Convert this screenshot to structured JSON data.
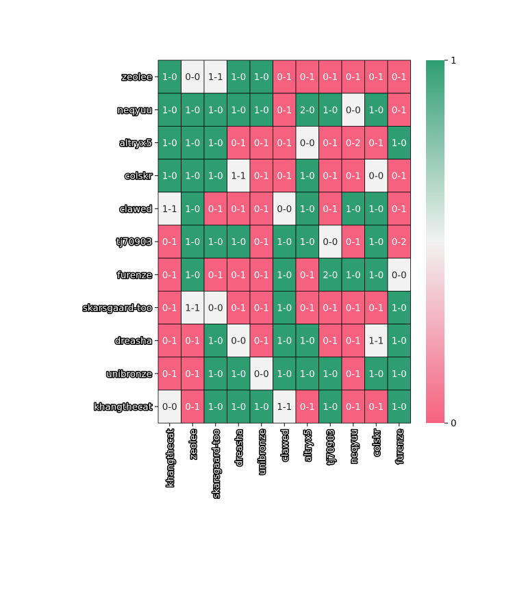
{
  "chart_data": {
    "type": "heatmap",
    "title": "",
    "xlabel": "",
    "ylabel": "",
    "rows": [
      "zeolee",
      "neqyuu",
      "altryx5",
      "colskr",
      "clawed",
      "tj70903",
      "furenze",
      "skarsgaard-too",
      "dreasha",
      "unibronze",
      "khangthecat"
    ],
    "columns": [
      "khangthecat",
      "zeolee",
      "skarsgaard-too",
      "dreasha",
      "unibronze",
      "clawed",
      "altryx5",
      "tj70903",
      "neqyuu",
      "colskr",
      "furenze"
    ],
    "cell_labels": [
      [
        "1-0",
        "0-0",
        "1-1",
        "1-0",
        "1-0",
        "0-1",
        "0-1",
        "0-1",
        "0-1",
        "0-1",
        "0-1"
      ],
      [
        "1-0",
        "1-0",
        "1-0",
        "1-0",
        "1-0",
        "0-1",
        "2-0",
        "1-0",
        "0-0",
        "1-0",
        "0-1"
      ],
      [
        "1-0",
        "1-0",
        "1-0",
        "0-1",
        "0-1",
        "0-1",
        "0-0",
        "0-1",
        "0-2",
        "0-1",
        "1-0"
      ],
      [
        "1-0",
        "1-0",
        "1-0",
        "1-1",
        "0-1",
        "0-1",
        "1-0",
        "0-1",
        "0-1",
        "0-0",
        "0-1"
      ],
      [
        "1-1",
        "1-0",
        "0-1",
        "0-1",
        "0-1",
        "0-0",
        "1-0",
        "0-1",
        "1-0",
        "1-0",
        "0-1"
      ],
      [
        "0-1",
        "1-0",
        "1-0",
        "1-0",
        "0-1",
        "1-0",
        "1-0",
        "0-0",
        "0-1",
        "1-0",
        "0-2"
      ],
      [
        "0-1",
        "1-0",
        "0-1",
        "0-1",
        "0-1",
        "1-0",
        "0-1",
        "2-0",
        "1-0",
        "1-0",
        "0-0"
      ],
      [
        "0-1",
        "1-1",
        "0-0",
        "0-1",
        "0-1",
        "1-0",
        "0-1",
        "0-1",
        "0-1",
        "0-1",
        "1-0"
      ],
      [
        "0-1",
        "0-1",
        "1-0",
        "0-0",
        "0-1",
        "1-0",
        "1-0",
        "0-1",
        "0-1",
        "1-1",
        "1-0"
      ],
      [
        "0-1",
        "0-1",
        "1-0",
        "1-0",
        "0-0",
        "1-0",
        "1-0",
        "1-0",
        "0-1",
        "1-0",
        "1-0"
      ],
      [
        "0-0",
        "0-1",
        "1-0",
        "1-0",
        "1-0",
        "1-1",
        "0-1",
        "1-0",
        "0-1",
        "0-1",
        "1-0"
      ]
    ],
    "values": [
      [
        1,
        0.5,
        0.5,
        1,
        1,
        0,
        0,
        0,
        0,
        0,
        0
      ],
      [
        1,
        1,
        1,
        1,
        1,
        0,
        1,
        1,
        0.5,
        1,
        0
      ],
      [
        1,
        1,
        1,
        0,
        0,
        0,
        0.5,
        0,
        0,
        0,
        1
      ],
      [
        1,
        1,
        1,
        0.5,
        0,
        0,
        1,
        0,
        0,
        0.5,
        0
      ],
      [
        0.5,
        1,
        0,
        0,
        0,
        0.5,
        1,
        0,
        1,
        1,
        0
      ],
      [
        0,
        1,
        1,
        1,
        0,
        1,
        1,
        0.5,
        0,
        1,
        0
      ],
      [
        0,
        1,
        0,
        0,
        0,
        1,
        0,
        1,
        1,
        1,
        0.5
      ],
      [
        0,
        0.5,
        0.5,
        0,
        0,
        1,
        0,
        0,
        0,
        0,
        1
      ],
      [
        0,
        0,
        1,
        0.5,
        0,
        1,
        1,
        0,
        0,
        0.5,
        1
      ],
      [
        0,
        0,
        1,
        1,
        0.5,
        1,
        1,
        1,
        0,
        1,
        1
      ],
      [
        0.5,
        0,
        1,
        1,
        1,
        0.5,
        0,
        1,
        0,
        0,
        1
      ]
    ],
    "colorbar": {
      "min": 0,
      "max": 1,
      "ticks": [
        "0",
        "1"
      ]
    },
    "colors": {
      "low": "#f5617f",
      "mid": "#f2f2f2",
      "high": "#2e9e72"
    },
    "grid": true
  }
}
